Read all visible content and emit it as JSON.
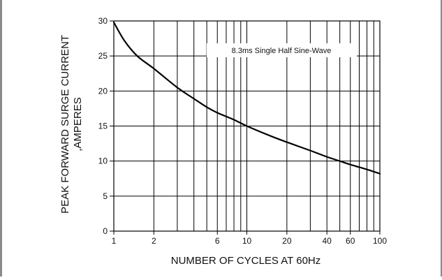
{
  "chart_data": {
    "type": "line",
    "title": "",
    "annotation": "8.3ms Single Half Sine-Wave",
    "xlabel": "NUMBER OF CYCLES AT 60Hz",
    "ylabel_line1": "PEAK FORWARD SURGE CURRENT",
    "ylabel_line2": ",AMPERES",
    "xscale": "log",
    "xlim": [
      1,
      100
    ],
    "ylim": [
      0,
      30
    ],
    "grid": true,
    "xticks": [
      1,
      2,
      6,
      10,
      20,
      40,
      60,
      100
    ],
    "xtick_labels": [
      "1",
      "2",
      "6",
      "10",
      "20",
      "40",
      "60",
      "100"
    ],
    "yticks": [
      0,
      5,
      10,
      15,
      20,
      25,
      30
    ],
    "ytick_labels": [
      "0",
      "5",
      "10",
      "15",
      "20",
      "25",
      "30"
    ],
    "series": [
      {
        "color": "#000000",
        "x": [
          1,
          1.2,
          1.5,
          2,
          3,
          4,
          5,
          6,
          8,
          10,
          15,
          20,
          30,
          40,
          50,
          60,
          80,
          100
        ],
        "y": [
          29.8,
          27.2,
          25.0,
          23.2,
          20.5,
          18.9,
          17.7,
          16.9,
          15.9,
          15.0,
          13.6,
          12.7,
          11.5,
          10.6,
          10.0,
          9.5,
          8.8,
          8.2
        ]
      }
    ]
  }
}
